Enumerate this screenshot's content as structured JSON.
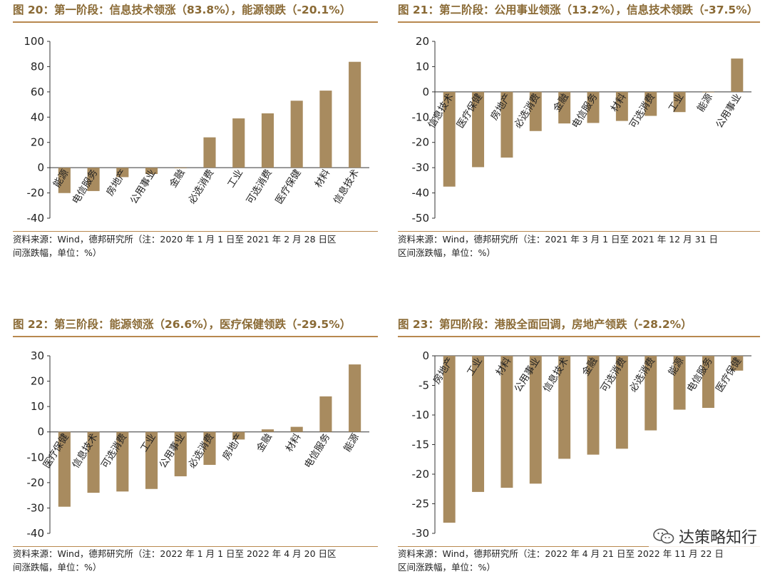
{
  "colors": {
    "bar": "#a88b5f",
    "accent": "#b8884f",
    "title": "#8a6a35"
  },
  "watermark": {
    "text": "达策略知行",
    "icon": "wechat-icon"
  },
  "chart_data": [
    {
      "type": "bar",
      "title": "图 20：第一阶段：信息技术领涨（83.8%），能源领跌（-20.1%）",
      "source_line1": "资料来源：Wind，德邦研究所（注：2020 年 1 月 1 日至 2021 年 2 月 28 日区",
      "source_line2": "间涨跌幅，单位：%）",
      "categories": [
        "能源",
        "电信服务",
        "房地产",
        "公用事业",
        "金融",
        "必选消费",
        "工业",
        "可选消费",
        "医疗保健",
        "材料",
        "信息技术"
      ],
      "values": [
        -20.1,
        -18.5,
        -7.5,
        -5.0,
        -0.5,
        24.0,
        39.0,
        43.0,
        53.0,
        61.0,
        83.8
      ],
      "ylim": [
        -40,
        100
      ],
      "yticks": [
        -40,
        -20,
        0,
        20,
        40,
        60,
        80,
        100
      ]
    },
    {
      "type": "bar",
      "title": "图 21：第二阶段：公用事业领涨（13.2%），信息技术领跌（-37.5%）",
      "source_line1": "资料来源：Wind，德邦研究所（注：2021 年 3 月 1 日至 2021 年 12 月 31 日",
      "source_line2": "区间涨跌幅，单位：%）",
      "categories": [
        "信息技术",
        "医疗保健",
        "房地产",
        "必选消费",
        "金融",
        "电信服务",
        "材料",
        "可选消费",
        "工业",
        "能源",
        "公用事业"
      ],
      "values": [
        -37.5,
        -29.8,
        -26.0,
        -15.5,
        -12.5,
        -12.3,
        -11.5,
        -9.5,
        -8.0,
        0.0,
        13.2
      ],
      "ylim": [
        -50,
        20
      ],
      "yticks": [
        -50,
        -40,
        -30,
        -20,
        -10,
        0,
        10,
        20
      ]
    },
    {
      "type": "bar",
      "title": "图 22：第三阶段：能源领涨（26.6%），医疗保健领跌（-29.5%）",
      "source_line1": "资料来源：Wind，德邦研究所（注：2022 年 1 月 1 日至 2022 年 4 月 20 日区",
      "source_line2": "间涨跌幅，单位：%）",
      "categories": [
        "医疗保健",
        "信息技术",
        "可选消费",
        "工业",
        "公用事业",
        "必选消费",
        "房地产",
        "金融",
        "材料",
        "电信服务",
        "能源"
      ],
      "values": [
        -29.5,
        -24.0,
        -23.5,
        -22.5,
        -17.5,
        -13.0,
        -3.0,
        1.0,
        2.0,
        14.0,
        26.6
      ],
      "ylim": [
        -40,
        30
      ],
      "yticks": [
        -40,
        -30,
        -20,
        -10,
        0,
        10,
        20,
        30
      ]
    },
    {
      "type": "bar",
      "title": "图 23：第四阶段：港股全面回调，房地产领跌（-28.2%）",
      "source_line1": "资料来源：Wind，德邦研究所（注：2022 年 4 月 21 日至 2022 年 11 月 22 日",
      "source_line2": "区间涨跌幅，单位：%）",
      "categories": [
        "房地产",
        "工业",
        "材料",
        "公用事业",
        "信息技术",
        "金融",
        "可选消费",
        "必选消费",
        "能源",
        "电信服务",
        "医疗保健"
      ],
      "values": [
        -28.2,
        -23.0,
        -22.3,
        -21.6,
        -17.4,
        -16.7,
        -15.7,
        -12.6,
        -9.1,
        -8.8,
        -2.5
      ],
      "ylim": [
        -30,
        0
      ],
      "yticks": [
        -30,
        -25,
        -20,
        -15,
        -10,
        -5,
        0
      ]
    }
  ]
}
